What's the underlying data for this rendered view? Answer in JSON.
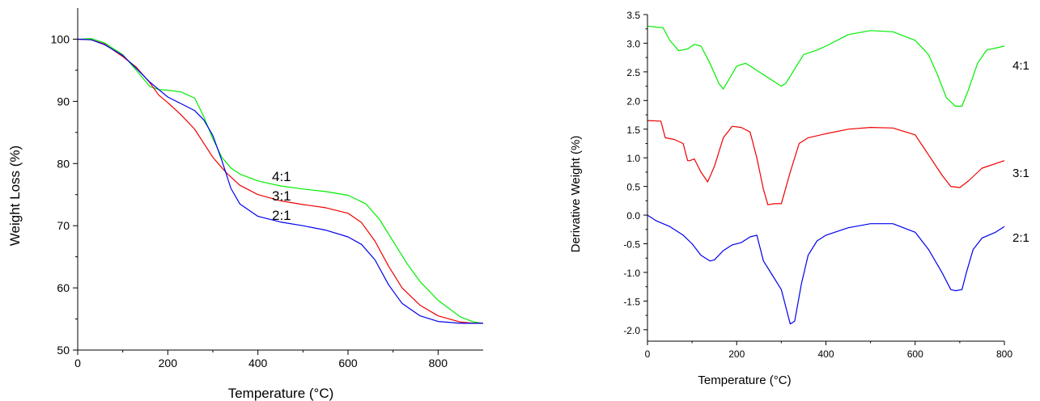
{
  "chart_data": [
    {
      "type": "line",
      "title": "",
      "xlabel": "Temperature (°C)",
      "ylabel": "Weight Loss (%)",
      "xlim": [
        0,
        900
      ],
      "ylim": [
        50,
        105
      ],
      "xticks": [
        "0",
        "200",
        "400",
        "600",
        "800"
      ],
      "yticks": [
        "50",
        "60",
        "70",
        "80",
        "90",
        "100"
      ],
      "grid": false,
      "series": [
        {
          "name": "4:1",
          "color": "#00ee00",
          "x": [
            0,
            30,
            60,
            100,
            130,
            160,
            180,
            200,
            230,
            260,
            280,
            300,
            320,
            340,
            360,
            400,
            450,
            500,
            550,
            600,
            640,
            670,
            700,
            730,
            760,
            800,
            850,
            880,
            900
          ],
          "y": [
            100,
            100.1,
            99.4,
            97.5,
            95.0,
            92.4,
            91.9,
            91.8,
            91.5,
            90.5,
            87.5,
            84.0,
            81.0,
            79.3,
            78.3,
            77.2,
            76.4,
            75.9,
            75.5,
            74.9,
            73.5,
            71.0,
            67.5,
            64.0,
            61.0,
            58.0,
            55.3,
            54.5,
            54.3
          ]
        },
        {
          "name": "3:1",
          "color": "#ee0000",
          "x": [
            0,
            30,
            60,
            100,
            130,
            160,
            180,
            200,
            230,
            260,
            300,
            330,
            360,
            400,
            450,
            500,
            550,
            600,
            630,
            660,
            690,
            720,
            760,
            800,
            850,
            880,
            900
          ],
          "y": [
            100,
            99.9,
            99.2,
            97.2,
            95.5,
            93.0,
            91.0,
            89.8,
            87.8,
            85.5,
            81.0,
            78.5,
            76.5,
            75.0,
            74.0,
            73.4,
            72.9,
            72.0,
            70.5,
            67.5,
            63.5,
            60.0,
            57.2,
            55.5,
            54.5,
            54.3,
            54.3
          ]
        },
        {
          "name": "2:1",
          "color": "#0000ee",
          "x": [
            0,
            30,
            60,
            100,
            130,
            160,
            180,
            200,
            230,
            260,
            280,
            300,
            320,
            340,
            360,
            400,
            450,
            500,
            550,
            600,
            630,
            660,
            690,
            720,
            760,
            800,
            850,
            880,
            900
          ],
          "y": [
            100,
            99.9,
            99.1,
            97.4,
            95.3,
            93.1,
            91.9,
            90.7,
            89.6,
            88.5,
            87.0,
            84.5,
            80.5,
            76.0,
            73.5,
            71.5,
            70.6,
            70.0,
            69.3,
            68.2,
            67.0,
            64.5,
            60.5,
            57.5,
            55.5,
            54.6,
            54.3,
            54.3,
            54.3
          ]
        }
      ],
      "annotations": [
        "4:1",
        "3:1",
        "2:1"
      ]
    },
    {
      "type": "line",
      "title": "",
      "xlabel": "Temperature (°C)",
      "ylabel": "Derivative Weight (%)",
      "xlim": [
        0,
        800
      ],
      "ylim": [
        -2.2,
        3.5
      ],
      "xticks": [
        "0",
        "200",
        "400",
        "600",
        "800"
      ],
      "yticks": [
        "-2.0",
        "-1.5",
        "-1.0",
        "-0.5",
        "0.0",
        "0.5",
        "1.0",
        "1.5",
        "2.0",
        "2.5",
        "3.0",
        "3.5"
      ],
      "grid": false,
      "series": [
        {
          "name": "4:1",
          "color": "#00ee00",
          "x": [
            0,
            20,
            35,
            50,
            70,
            90,
            105,
            120,
            140,
            160,
            170,
            185,
            200,
            220,
            240,
            260,
            280,
            300,
            310,
            330,
            350,
            380,
            400,
            450,
            500,
            550,
            600,
            630,
            650,
            670,
            690,
            705,
            720,
            740,
            760,
            800
          ],
          "y": [
            3.3,
            3.28,
            3.27,
            3.05,
            2.87,
            2.9,
            2.98,
            2.95,
            2.65,
            2.3,
            2.2,
            2.4,
            2.6,
            2.65,
            2.55,
            2.45,
            2.35,
            2.25,
            2.3,
            2.55,
            2.8,
            2.88,
            2.95,
            3.15,
            3.22,
            3.2,
            3.05,
            2.8,
            2.45,
            2.05,
            1.9,
            1.9,
            2.2,
            2.65,
            2.88,
            2.95
          ]
        },
        {
          "name": "3:1",
          "color": "#ee0000",
          "x": [
            0,
            30,
            40,
            60,
            80,
            90,
            95,
            105,
            120,
            135,
            150,
            170,
            190,
            210,
            230,
            245,
            260,
            270,
            285,
            300,
            320,
            340,
            360,
            400,
            450,
            500,
            550,
            600,
            630,
            660,
            680,
            700,
            720,
            750,
            800
          ],
          "y": [
            1.65,
            1.64,
            1.35,
            1.32,
            1.25,
            0.95,
            0.95,
            0.98,
            0.75,
            0.58,
            0.85,
            1.35,
            1.55,
            1.53,
            1.45,
            1.0,
            0.45,
            0.18,
            0.2,
            0.2,
            0.75,
            1.25,
            1.35,
            1.42,
            1.5,
            1.53,
            1.52,
            1.4,
            1.05,
            0.7,
            0.5,
            0.48,
            0.6,
            0.82,
            0.95
          ]
        },
        {
          "name": "2:1",
          "color": "#0000ee",
          "x": [
            0,
            20,
            50,
            80,
            100,
            120,
            140,
            150,
            170,
            190,
            210,
            230,
            245,
            260,
            280,
            300,
            310,
            320,
            330,
            345,
            360,
            380,
            400,
            450,
            500,
            550,
            600,
            630,
            660,
            680,
            690,
            705,
            715,
            730,
            750,
            780,
            800
          ],
          "y": [
            0.0,
            -0.1,
            -0.2,
            -0.35,
            -0.5,
            -0.7,
            -0.8,
            -0.78,
            -0.62,
            -0.52,
            -0.48,
            -0.38,
            -0.35,
            -0.8,
            -1.05,
            -1.3,
            -1.6,
            -1.9,
            -1.85,
            -1.2,
            -0.7,
            -0.45,
            -0.35,
            -0.22,
            -0.15,
            -0.15,
            -0.3,
            -0.6,
            -1.0,
            -1.3,
            -1.32,
            -1.3,
            -1.0,
            -0.6,
            -0.4,
            -0.3,
            -0.2
          ]
        }
      ],
      "annotations": [
        "4:1",
        "3:1",
        "2:1"
      ]
    }
  ]
}
